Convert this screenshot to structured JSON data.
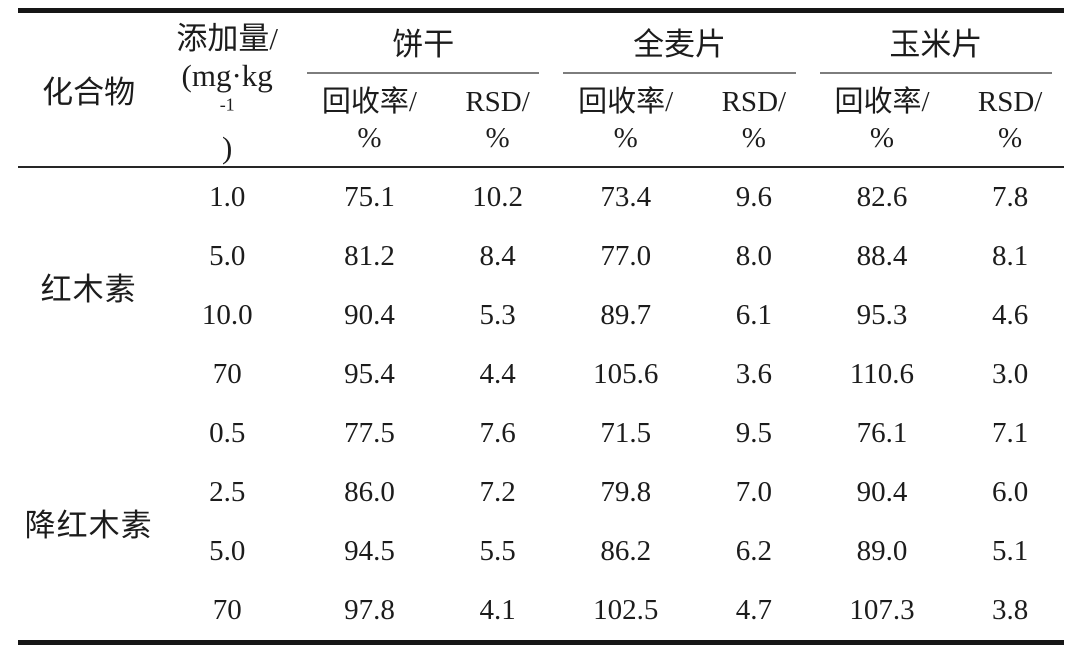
{
  "table": {
    "header": {
      "compound_label": "化合物",
      "amount": {
        "line1": "添加量/",
        "unit_pre": "(mg·kg",
        "unit_sup": "-1",
        "unit_post": ")"
      },
      "groups": [
        {
          "label": "饼干"
        },
        {
          "label": "全麦片"
        },
        {
          "label": "玉米片"
        }
      ],
      "sub": {
        "recovery1": "回收率/",
        "recovery2": "%",
        "rsd1": "RSD/",
        "rsd2": "%"
      }
    },
    "body": {
      "compounds": [
        {
          "name": "红木素"
        },
        {
          "name": "降红木素"
        }
      ],
      "rows": [
        {
          "amount": "1.0",
          "c": [
            "75.1",
            "10.2",
            "73.4",
            "9.6",
            "82.6",
            "7.8"
          ]
        },
        {
          "amount": "5.0",
          "c": [
            "81.2",
            "8.4",
            "77.0",
            "8.0",
            "88.4",
            "8.1"
          ]
        },
        {
          "amount": "10.0",
          "c": [
            "90.4",
            "5.3",
            "89.7",
            "6.1",
            "95.3",
            "4.6"
          ]
        },
        {
          "amount": "70",
          "c": [
            "95.4",
            "4.4",
            "105.6",
            "3.6",
            "110.6",
            "3.0"
          ]
        },
        {
          "amount": "0.5",
          "c": [
            "77.5",
            "7.6",
            "71.5",
            "9.5",
            "76.1",
            "7.1"
          ]
        },
        {
          "amount": "2.5",
          "c": [
            "86.0",
            "7.2",
            "79.8",
            "7.0",
            "90.4",
            "6.0"
          ]
        },
        {
          "amount": "5.0",
          "c": [
            "94.5",
            "5.5",
            "86.2",
            "6.2",
            "89.0",
            "5.1"
          ]
        },
        {
          "amount": "70",
          "c": [
            "97.8",
            "4.1",
            "102.5",
            "4.7",
            "107.3",
            "3.8"
          ]
        }
      ]
    },
    "colors": {
      "rule_heavy": "#161616",
      "rule_header": "#262626",
      "rule_group": "#7d7d7d",
      "text": "#1c1c1c"
    }
  }
}
